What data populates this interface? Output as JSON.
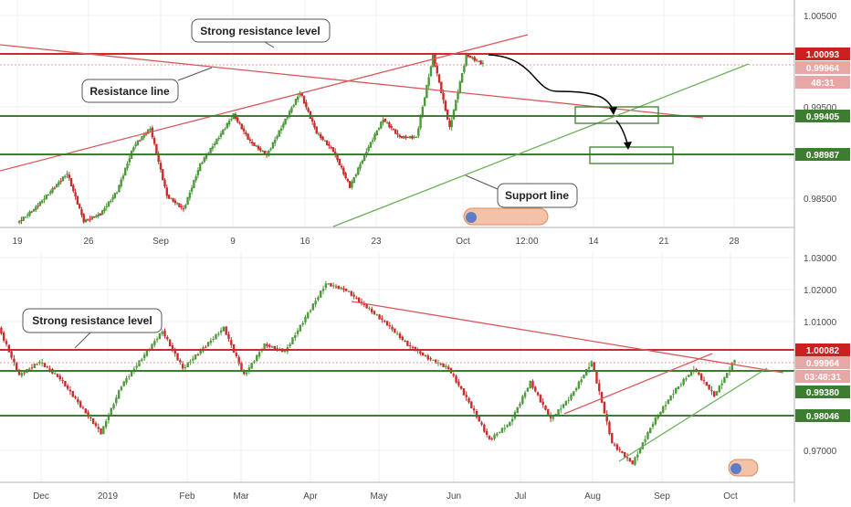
{
  "colors": {
    "resistance": "#cc2b2b",
    "trend_red": "#d9585c",
    "support": "#4c9a3a",
    "candle_up": "#4c9a3a",
    "candle_down": "#cc2b2b",
    "badge_red": "#cc1f1f",
    "badge_green": "#3d7d2f",
    "badge_pink": "#e8a7a7"
  },
  "top": {
    "labels": {
      "strong_resistance": "Strong resistance level",
      "resistance_line": "Resistance line",
      "support_line": "Support line"
    },
    "x_ticks": [
      "19",
      "26",
      "Sep",
      "9",
      "16",
      "23",
      "Oct",
      "12:00",
      "14",
      "21",
      "28"
    ],
    "y_ticks": [
      "1.00500",
      "0.99500",
      "0.98500"
    ],
    "badges": [
      "1.00093",
      "0.99964",
      "48:31",
      "0.99405",
      "0.98987"
    ]
  },
  "bottom": {
    "labels": {
      "strong_resistance": "Strong resistance level"
    },
    "x_ticks": [
      "Dec",
      "2019",
      "Feb",
      "Mar",
      "Apr",
      "May",
      "Jun",
      "Jul",
      "Aug",
      "Sep",
      "Oct"
    ],
    "y_ticks": [
      "1.03000",
      "1.02000",
      "1.01000",
      "0.97000"
    ],
    "badges": [
      "1.00082",
      "0.99964",
      "03:48:31",
      "0.99380",
      "0.98046"
    ]
  },
  "chart_data": [
    {
      "type": "line",
      "title": "",
      "xlabel": "",
      "ylabel": "",
      "x_tick_labels": [
        "19",
        "26",
        "Sep",
        "9",
        "16",
        "23",
        "Oct",
        "12:00",
        "14",
        "21",
        "28"
      ],
      "y_tick_values": [
        1.005,
        0.995,
        0.985
      ],
      "ylim": [
        0.9815,
        1.0067
      ],
      "series": [
        {
          "x": [
            0,
            2,
            4,
            6,
            8,
            10,
            12,
            14,
            16,
            18,
            20,
            22,
            24,
            26,
            28,
            30,
            32,
            34,
            36,
            38,
            40,
            42,
            44,
            46,
            48,
            50,
            52,
            54,
            56
          ],
          "values": [
            0.982,
            0.9835,
            0.9855,
            0.9875,
            0.9822,
            0.983,
            0.9855,
            0.9905,
            0.9925,
            0.985,
            0.9835,
            0.9885,
            0.9912,
            0.994,
            0.991,
            0.9895,
            0.993,
            0.9965,
            0.992,
            0.99,
            0.986,
            0.99,
            0.9935,
            0.9915,
            0.9915,
            1.0005,
            0.9925,
            1.0006,
            0.9996
          ]
        }
      ],
      "levels": [
        1.00093,
        0.99405,
        0.98987
      ],
      "annotations": [
        "Strong resistance level",
        "Resistance line",
        "Support line"
      ]
    },
    {
      "type": "line",
      "title": "",
      "xlabel": "",
      "ylabel": "",
      "x_tick_labels": [
        "Dec",
        "2019",
        "Feb",
        "Mar",
        "Apr",
        "May",
        "Jun",
        "Jul",
        "Aug",
        "Sep",
        "Oct"
      ],
      "y_tick_values": [
        1.03,
        1.02,
        1.01,
        0.97
      ],
      "ylim": [
        0.9635,
        1.0315
      ],
      "series": [
        {
          "x": [
            0,
            1,
            2,
            3,
            4,
            5,
            6,
            7,
            8,
            9,
            10,
            11,
            12,
            13,
            14,
            15,
            16,
            17,
            18,
            19,
            20,
            21,
            22,
            23,
            24,
            25,
            26,
            27,
            28,
            29,
            30,
            31,
            32,
            33,
            34,
            35,
            36
          ],
          "values": [
            1.009,
            0.995,
            0.999,
            0.994,
            0.986,
            0.978,
            0.992,
            1.0,
            1.008,
            0.997,
            1.003,
            1.009,
            0.995,
            1.004,
            1.002,
            1.012,
            1.022,
            1.02,
            1.015,
            1.01,
            1.004,
            1.0,
            0.997,
            0.987,
            0.976,
            0.981,
            0.993,
            0.982,
            0.989,
            0.999,
            0.975,
            0.969,
            0.981,
            0.99,
            0.997,
            0.989,
            0.9996
          ]
        }
      ],
      "levels": [
        1.00082,
        0.9938,
        0.98046
      ],
      "annotations": [
        "Strong resistance level"
      ]
    }
  ]
}
